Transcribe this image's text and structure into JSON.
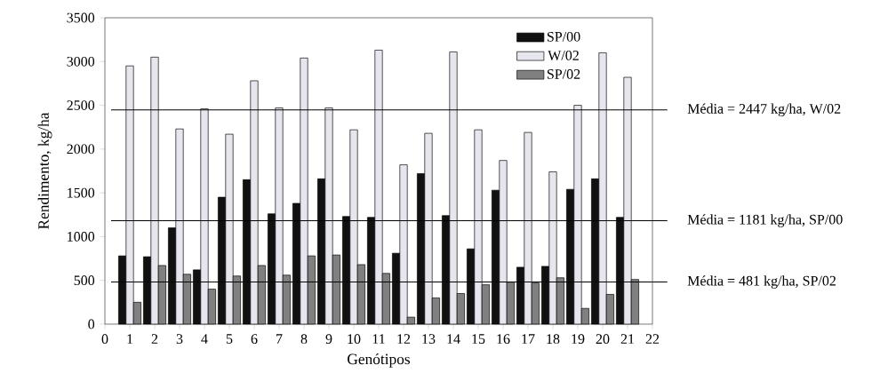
{
  "chart_data": {
    "type": "bar",
    "xlabel": "Genótipos",
    "ylabel": "Rendimento, kg/ha",
    "x": [
      1,
      2,
      3,
      4,
      5,
      6,
      7,
      8,
      9,
      10,
      11,
      12,
      13,
      14,
      15,
      16,
      17,
      18,
      19,
      20,
      21
    ],
    "series": [
      {
        "name": "SP/00",
        "color": "#111111",
        "values": [
          780,
          770,
          1100,
          620,
          1450,
          1650,
          1260,
          1380,
          1660,
          1230,
          1220,
          810,
          1720,
          1240,
          860,
          1530,
          650,
          660,
          1540,
          1660,
          1220
        ]
      },
      {
        "name": "W/02",
        "color": "#e6e6ee",
        "values": [
          2950,
          3050,
          2230,
          2460,
          2170,
          2780,
          2470,
          3040,
          2470,
          2220,
          3130,
          1820,
          2180,
          3110,
          2220,
          1870,
          2190,
          1740,
          2500,
          3100,
          2820
        ]
      },
      {
        "name": "SP/02",
        "color": "#808080",
        "values": [
          250,
          670,
          570,
          400,
          550,
          670,
          560,
          780,
          790,
          680,
          580,
          80,
          300,
          350,
          450,
          480,
          470,
          530,
          180,
          340,
          510
        ]
      }
    ],
    "xlim": [
      0,
      22
    ],
    "xticks": [
      0,
      1,
      2,
      3,
      4,
      5,
      6,
      7,
      8,
      9,
      10,
      11,
      12,
      13,
      14,
      15,
      16,
      17,
      18,
      19,
      20,
      21,
      22
    ],
    "ylim": [
      0,
      3500
    ],
    "yticks": [
      0,
      500,
      1000,
      1500,
      2000,
      2500,
      3000,
      3500
    ],
    "grid": false,
    "legend": "top right",
    "ref_lines": [
      {
        "axis": "y",
        "value": 2447,
        "label": "Média = 2447 kg/ha, W/02",
        "color": "#000000"
      },
      {
        "axis": "y",
        "value": 1181,
        "label": "Média = 1181 kg/ha, SP/00",
        "color": "#000000"
      },
      {
        "axis": "y",
        "value": 481,
        "label": "Média = 481 kg/ha, SP/02",
        "color": "#000000"
      }
    ]
  }
}
